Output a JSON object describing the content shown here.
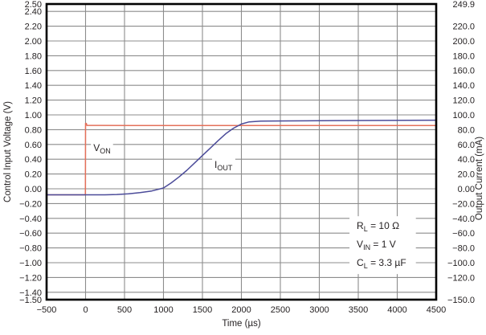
{
  "chart_data": {
    "type": "line",
    "title": "",
    "xlabel": "Time (µs)",
    "ylabel_left": "Control Input Voltage (V)",
    "ylabel_right": "Output Current (mA)",
    "x_range": [
      -500,
      4500
    ],
    "y_left_range": [
      -1.5,
      2.5
    ],
    "y_right_range": [
      -150.0,
      249.9
    ],
    "grid": true,
    "legend_position": "none",
    "colors": {
      "grid": "#8c8c8c",
      "frame": "#000000",
      "text": "#231f20",
      "von": "#e4705a",
      "iout": "#4b4b99",
      "label_background": "#ffffff"
    },
    "x_ticks": [
      {
        "label": "−500",
        "value": -500
      },
      {
        "label": "0",
        "value": 0
      },
      {
        "label": "500",
        "value": 500
      },
      {
        "label": "1000",
        "value": 1000
      },
      {
        "label": "1500",
        "value": 1500
      },
      {
        "label": "2000",
        "value": 2000
      },
      {
        "label": "2500",
        "value": 2500
      },
      {
        "label": "3000",
        "value": 3000
      },
      {
        "label": "3500",
        "value": 3500
      },
      {
        "label": "4000",
        "value": 4000
      },
      {
        "label": "4500",
        "value": 4500
      }
    ],
    "y_left_ticks": [
      {
        "label": "2.50",
        "value": 2.5
      },
      {
        "label": "2.40",
        "value": 2.4
      },
      {
        "label": "2.20",
        "value": 2.2
      },
      {
        "label": "2.00",
        "value": 2.0
      },
      {
        "label": "1.80",
        "value": 1.8
      },
      {
        "label": "1.60",
        "value": 1.6
      },
      {
        "label": "1.40",
        "value": 1.4
      },
      {
        "label": "1.20",
        "value": 1.2
      },
      {
        "label": "1.00",
        "value": 1.0
      },
      {
        "label": "0.80",
        "value": 0.8
      },
      {
        "label": "0.60",
        "value": 0.6
      },
      {
        "label": "0.40",
        "value": 0.4
      },
      {
        "label": "0.20",
        "value": 0.2
      },
      {
        "label": "0.00",
        "value": 0.0
      },
      {
        "label": "−0.20",
        "value": -0.2
      },
      {
        "label": "−0.40",
        "value": -0.4
      },
      {
        "label": "−0.60",
        "value": -0.6
      },
      {
        "label": "−0.80",
        "value": -0.8
      },
      {
        "label": "−1.00",
        "value": -1.0
      },
      {
        "label": "−1.20",
        "value": -1.2
      },
      {
        "label": "−1.40",
        "value": -1.4
      },
      {
        "label": "−1.50",
        "value": -1.5
      }
    ],
    "y_right_ticks": [
      {
        "label": "249.9",
        "value": 249.9
      },
      {
        "label": "220.0",
        "value": 220
      },
      {
        "label": "200.0",
        "value": 200
      },
      {
        "label": "180.0",
        "value": 180
      },
      {
        "label": "160.0",
        "value": 160
      },
      {
        "label": "140.0",
        "value": 140
      },
      {
        "label": "120.0",
        "value": 120
      },
      {
        "label": "100.0",
        "value": 100
      },
      {
        "label": "80.0",
        "value": 80
      },
      {
        "label": "60.0",
        "value": 60
      },
      {
        "label": "40.0",
        "value": 40
      },
      {
        "label": "20.0",
        "value": 20
      },
      {
        "label": "0.00",
        "value": 0
      },
      {
        "label": "−20.0",
        "value": -20
      },
      {
        "label": "−40.0",
        "value": -40
      },
      {
        "label": "−60.0",
        "value": -60
      },
      {
        "label": "−80.0",
        "value": -80
      },
      {
        "label": "−100.0",
        "value": -100
      },
      {
        "label": "−120.0",
        "value": -120
      },
      {
        "label": "−150.0",
        "value": -150
      }
    ],
    "series": [
      {
        "name": "VON",
        "axis": "left",
        "color": "#e4705a",
        "points": [
          [
            -500,
            -0.082
          ],
          [
            -2,
            -0.082
          ],
          [
            0,
            0.885
          ],
          [
            10,
            0.885
          ],
          [
            16,
            0.858
          ],
          [
            600,
            0.857
          ],
          [
            4500,
            0.857
          ]
        ]
      },
      {
        "name": "IOUT",
        "axis": "right",
        "color": "#4b4b99",
        "points": [
          [
            -500,
            -8.2
          ],
          [
            250,
            -8.2
          ],
          [
            400,
            -7.8
          ],
          [
            550,
            -6.8
          ],
          [
            700,
            -5.2
          ],
          [
            850,
            -3.0
          ],
          [
            1000,
            1.0
          ],
          [
            1100,
            8.0
          ],
          [
            1200,
            16.0
          ],
          [
            1300,
            25.0
          ],
          [
            1400,
            35.0
          ],
          [
            1500,
            45.0
          ],
          [
            1600,
            55.0
          ],
          [
            1700,
            65.0
          ],
          [
            1800,
            74.5
          ],
          [
            1900,
            82.0
          ],
          [
            2000,
            87.5
          ],
          [
            2100,
            90.5
          ],
          [
            2250,
            91.5
          ],
          [
            2600,
            91.8
          ],
          [
            3200,
            92.2
          ],
          [
            4500,
            92.8
          ]
        ]
      }
    ],
    "curve_labels": [
      {
        "name": "von-label",
        "t": 100,
        "v": 0.51,
        "segments": [
          {
            "t": "V"
          },
          {
            "s": "ON"
          }
        ]
      },
      {
        "name": "iout-label",
        "t": 1655,
        "v": 0.28,
        "segments": [
          {
            "t": "I"
          },
          {
            "s": "OUT"
          }
        ]
      }
    ],
    "conditions": {
      "t": 3480,
      "lines": [
        {
          "v": -0.545,
          "segments": [
            {
              "t": "R"
            },
            {
              "s": "L"
            },
            {
              "t": " = 10 Ω"
            }
          ]
        },
        {
          "v": -0.795,
          "segments": [
            {
              "t": "V"
            },
            {
              "s": "IN"
            },
            {
              "t": " = 1 V"
            }
          ]
        },
        {
          "v": -1.045,
          "segments": [
            {
              "t": "C"
            },
            {
              "s": "L"
            },
            {
              "t": " = 3.3 µF"
            }
          ]
        }
      ]
    }
  }
}
